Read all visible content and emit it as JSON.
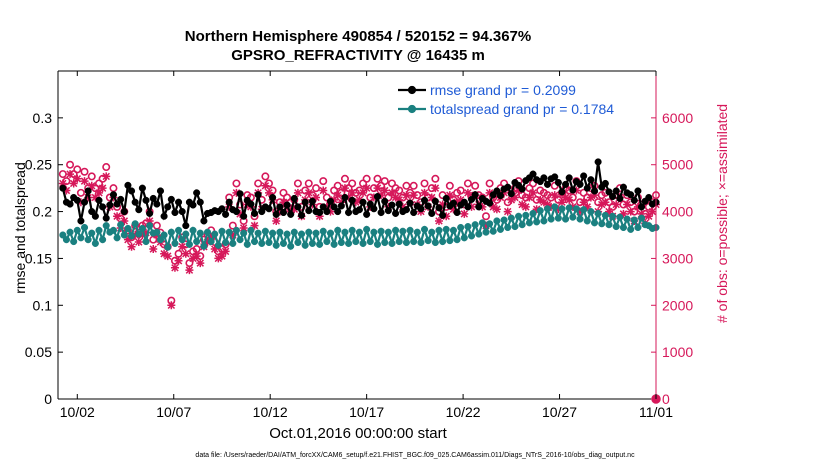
{
  "chart_data": {
    "type": "line",
    "title": "Northern Hemisphere 490854 / 520152 = 94.367%",
    "subtitle": "GPSRO_REFRACTIVITY @ 16435 m",
    "xlabel": "Oct.01,2016 00:00:00 start",
    "ylabel_left": "rmse and totalspread",
    "ylabel_right": "# of obs: o=possible; ×=assimilated",
    "footnote": "data file: /Users/raeder/DAI/ATM_forcXX/CAM6_setup/f.e21.FHIST_BGC.f09_025.CAM6assim.011/Diags_NTrS_2016-10/obs_diag_output.nc",
    "xlim": [
      0,
      31
    ],
    "ylim_left": [
      0,
      0.35
    ],
    "ylim_right": [
      0,
      7000
    ],
    "x_ticks": [
      1,
      6,
      11,
      16,
      21,
      26,
      31
    ],
    "x_tick_labels": [
      "10/02",
      "10/07",
      "10/12",
      "10/17",
      "10/22",
      "10/27",
      "11/01"
    ],
    "y_ticks_left": [
      "0",
      "0.05",
      "0.1",
      "0.15",
      "0.2",
      "0.25",
      "0.3"
    ],
    "y_ticks_right": [
      "0",
      "1000",
      "2000",
      "3000",
      "4000",
      "5000",
      "6000"
    ],
    "legend": {
      "placement": "top-right",
      "entries": [
        "rmse grand pr = 0.2099",
        "totalspread grand pr = 0.1784"
      ]
    },
    "series": [
      {
        "name": "rmse",
        "axis": "left",
        "color": "#000000",
        "values": [
          0.225,
          0.21,
          0.208,
          0.215,
          0.212,
          0.19,
          0.21,
          0.222,
          0.2,
          0.195,
          0.212,
          0.205,
          0.193,
          0.207,
          0.218,
          0.208,
          0.213,
          0.2,
          0.228,
          0.222,
          0.21,
          0.202,
          0.225,
          0.212,
          0.198,
          0.214,
          0.208,
          0.222,
          0.195,
          0.205,
          0.213,
          0.199,
          0.21,
          0.2,
          0.185,
          0.21,
          0.207,
          0.22,
          0.21,
          0.19,
          0.198,
          0.199,
          0.201,
          0.2,
          0.203,
          0.197,
          0.21,
          0.202,
          0.2,
          0.219,
          0.195,
          0.212,
          0.208,
          0.198,
          0.218,
          0.2,
          0.205,
          0.203,
          0.215,
          0.197,
          0.205,
          0.199,
          0.207,
          0.197,
          0.214,
          0.205,
          0.196,
          0.21,
          0.201,
          0.211,
          0.2,
          0.199,
          0.205,
          0.2,
          0.211,
          0.205,
          0.2,
          0.206,
          0.215,
          0.199,
          0.212,
          0.2,
          0.202,
          0.21,
          0.197,
          0.208,
          0.203,
          0.216,
          0.199,
          0.211,
          0.201,
          0.207,
          0.198,
          0.208,
          0.2,
          0.202,
          0.209,
          0.199,
          0.206,
          0.203,
          0.212,
          0.206,
          0.198,
          0.211,
          0.204,
          0.196,
          0.214,
          0.206,
          0.209,
          0.199,
          0.207,
          0.21,
          0.205,
          0.213,
          0.218,
          0.205,
          0.214,
          0.211,
          0.209,
          0.218,
          0.222,
          0.217,
          0.224,
          0.226,
          0.219,
          0.231,
          0.228,
          0.224,
          0.233,
          0.236,
          0.24,
          0.234,
          0.232,
          0.236,
          0.229,
          0.235,
          0.237,
          0.231,
          0.221,
          0.229,
          0.236,
          0.223,
          0.232,
          0.229,
          0.238,
          0.225,
          0.234,
          0.222,
          0.253,
          0.226,
          0.23,
          0.221,
          0.216,
          0.222,
          0.214,
          0.226,
          0.22,
          0.218,
          0.212,
          0.222,
          0.205,
          0.211,
          0.215,
          0.208,
          0.21
        ]
      },
      {
        "name": "totalspread",
        "axis": "left",
        "color": "#1a8080",
        "values": [
          0.175,
          0.17,
          0.178,
          0.168,
          0.18,
          0.172,
          0.183,
          0.17,
          0.177,
          0.166,
          0.18,
          0.17,
          0.185,
          0.178,
          0.18,
          0.172,
          0.186,
          0.175,
          0.182,
          0.174,
          0.187,
          0.176,
          0.182,
          0.168,
          0.185,
          0.177,
          0.178,
          0.17,
          0.175,
          0.162,
          0.178,
          0.166,
          0.18,
          0.17,
          0.176,
          0.165,
          0.18,
          0.168,
          0.177,
          0.163,
          0.178,
          0.168,
          0.176,
          0.164,
          0.179,
          0.167,
          0.178,
          0.166,
          0.18,
          0.17,
          0.177,
          0.165,
          0.18,
          0.168,
          0.177,
          0.166,
          0.179,
          0.167,
          0.177,
          0.164,
          0.178,
          0.166,
          0.176,
          0.163,
          0.178,
          0.167,
          0.176,
          0.164,
          0.178,
          0.166,
          0.177,
          0.165,
          0.179,
          0.168,
          0.177,
          0.165,
          0.18,
          0.167,
          0.178,
          0.166,
          0.18,
          0.168,
          0.178,
          0.166,
          0.181,
          0.168,
          0.178,
          0.165,
          0.179,
          0.167,
          0.178,
          0.166,
          0.18,
          0.168,
          0.179,
          0.167,
          0.18,
          0.168,
          0.178,
          0.167,
          0.181,
          0.169,
          0.178,
          0.167,
          0.18,
          0.168,
          0.181,
          0.169,
          0.18,
          0.17,
          0.183,
          0.172,
          0.184,
          0.174,
          0.186,
          0.176,
          0.188,
          0.178,
          0.187,
          0.179,
          0.19,
          0.181,
          0.191,
          0.183,
          0.193,
          0.184,
          0.195,
          0.186,
          0.196,
          0.188,
          0.198,
          0.189,
          0.201,
          0.19,
          0.203,
          0.192,
          0.205,
          0.193,
          0.203,
          0.192,
          0.204,
          0.194,
          0.203,
          0.192,
          0.202,
          0.19,
          0.2,
          0.188,
          0.198,
          0.187,
          0.196,
          0.186,
          0.195,
          0.184,
          0.194,
          0.183,
          0.192,
          0.181,
          0.191,
          0.183,
          0.193,
          0.186,
          0.185,
          0.182,
          0.183
        ]
      },
      {
        "name": "obs possible",
        "axis": "right",
        "marker": "o",
        "color": "#d6185a",
        "values": [
          4800,
          4650,
          5000,
          4800,
          4900,
          4400,
          4850,
          4500,
          4750,
          4500,
          4600,
          4700,
          4950,
          4300,
          4500,
          4100,
          3850,
          4000,
          3600,
          3450,
          3700,
          3550,
          3700,
          3750,
          4000,
          3400,
          3700,
          3550,
          3300,
          3250,
          2100,
          2950,
          3100,
          3450,
          3300,
          2900,
          3150,
          3200,
          3050,
          3400,
          3500,
          3600,
          3350,
          3150,
          3200,
          3300,
          4300,
          3700,
          4600,
          4150,
          3800,
          4350,
          4300,
          3900,
          4600,
          4250,
          4750,
          4600,
          4450,
          4000,
          4200,
          4400,
          4300,
          4200,
          4250,
          4600,
          4100,
          4450,
          4600,
          4350,
          4500,
          4100,
          4650,
          4300,
          4200,
          4450,
          4550,
          4400,
          4700,
          4500,
          4600,
          4400,
          4450,
          4600,
          4700,
          4300,
          4500,
          4700,
          4550,
          4650,
          4300,
          4600,
          4500,
          4450,
          4300,
          4550,
          4400,
          4550,
          4350,
          4200,
          4600,
          4300,
          4500,
          4700,
          4000,
          4350,
          4100,
          4550,
          4250,
          4400,
          4450,
          4150,
          4600,
          4300,
          4550,
          4350,
          4300,
          3900,
          4600,
          4300,
          4250,
          4500,
          4600,
          4200,
          4450,
          4500,
          4650,
          4350,
          4300,
          4500,
          4600,
          4250,
          4450,
          4400,
          4350,
          4300,
          4550,
          4250,
          4400,
          4500,
          4450,
          4300,
          4650,
          4200,
          4400,
          4300,
          4500,
          4550,
          4200,
          4350,
          4400,
          4200,
          4100,
          4350,
          4500,
          4150,
          4350,
          4200,
          4000,
          4300,
          4150,
          3950,
          4100,
          4200,
          4350
        ]
      },
      {
        "name": "obs assimilated",
        "axis": "right",
        "marker": "x",
        "color": "#d6185a",
        "values": [
          4600,
          4450,
          4800,
          4600,
          4700,
          4200,
          4650,
          4300,
          4550,
          4300,
          4400,
          4500,
          4750,
          4100,
          4300,
          3900,
          3650,
          3800,
          3400,
          3250,
          3500,
          3350,
          3500,
          3550,
          3800,
          3200,
          3500,
          3350,
          3100,
          3050,
          2000,
          2800,
          2950,
          3250,
          3100,
          2750,
          3000,
          3050,
          2900,
          3250,
          3350,
          3450,
          3200,
          3000,
          3050,
          3150,
          4100,
          3500,
          4400,
          3950,
          3650,
          4150,
          4100,
          3700,
          4400,
          4050,
          4550,
          4400,
          4250,
          3800,
          4000,
          4200,
          4100,
          4000,
          4050,
          4400,
          3900,
          4250,
          4400,
          4150,
          4300,
          3900,
          4450,
          4100,
          4000,
          4250,
          4350,
          4200,
          4500,
          4300,
          4400,
          4200,
          4250,
          4400,
          4500,
          4100,
          4300,
          4500,
          4350,
          4450,
          4100,
          4400,
          4300,
          4250,
          4100,
          4350,
          4200,
          4350,
          4150,
          4000,
          4400,
          4100,
          4300,
          4500,
          3800,
          4150,
          3900,
          4350,
          4050,
          4200,
          4250,
          3950,
          4400,
          4100,
          4350,
          4150,
          4100,
          3700,
          4400,
          4100,
          4050,
          4300,
          4400,
          4000,
          4250,
          4300,
          4450,
          4150,
          4100,
          4300,
          4400,
          4050,
          4250,
          4200,
          4150,
          4100,
          4350,
          4050,
          4200,
          4300,
          4250,
          4100,
          4450,
          4000,
          4200,
          4100,
          4300,
          4350,
          4000,
          4150,
          4200,
          4000,
          3900,
          4150,
          4300,
          3950,
          4150,
          4000,
          3800,
          4100,
          3950,
          3750,
          3900,
          4000,
          4150
        ]
      },
      {
        "name": "obs endpoint",
        "axis": "right",
        "marker": "o",
        "color": "#d6185a",
        "points": [
          [
            31,
            0
          ]
        ]
      }
    ]
  },
  "colors": {
    "rmse": "#000000",
    "spread": "#1a8080",
    "obs": "#d6185a",
    "legend_text": "#1f5bd6"
  }
}
